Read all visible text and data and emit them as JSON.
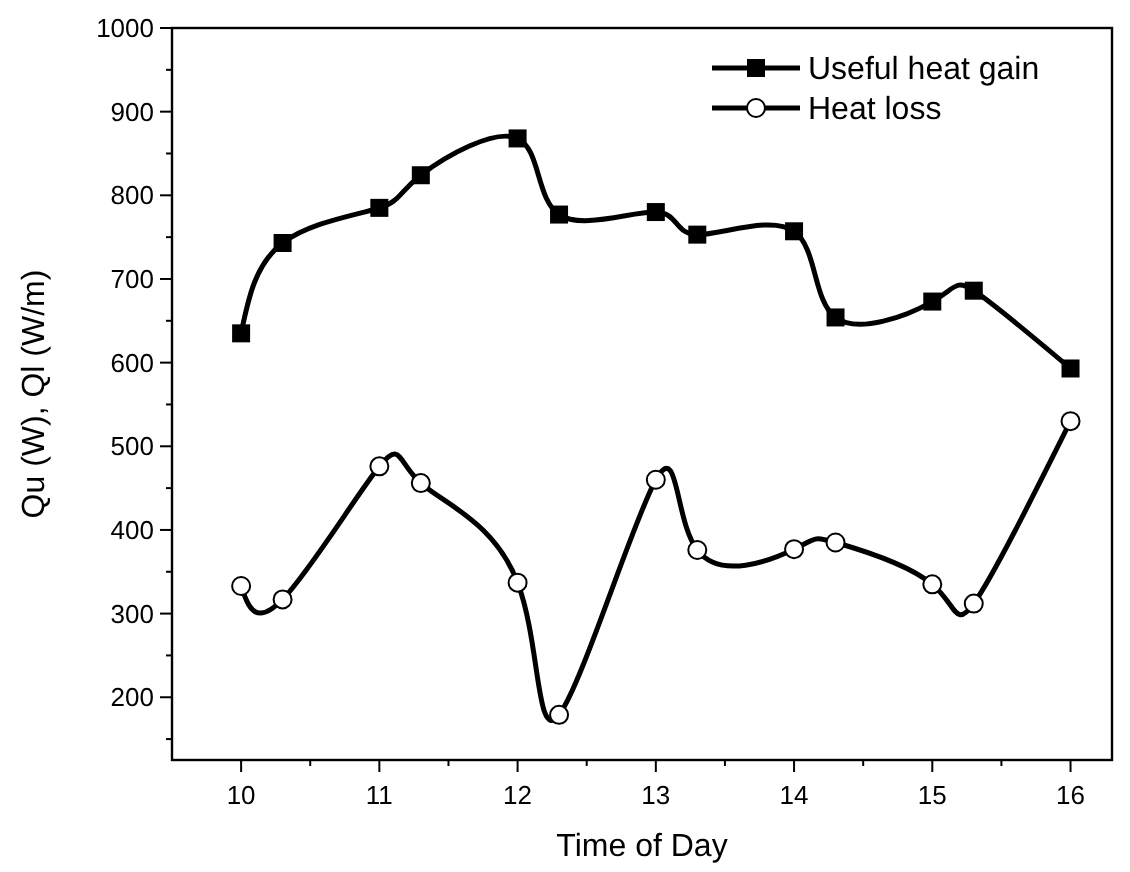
{
  "chart_data": {
    "type": "line",
    "xlabel": "Time of Day",
    "ylabel": "Qu (W), Ql (W/m)",
    "x": [
      10,
      10.3,
      11,
      11.3,
      12,
      12.3,
      13,
      13.3,
      14,
      14.3,
      15,
      15.3,
      16
    ],
    "series": [
      {
        "name": "Useful heat gain",
        "color": "#000000",
        "marker": "square",
        "values": [
          635,
          743,
          785,
          824,
          868,
          777,
          780,
          753,
          757,
          654,
          673,
          686,
          593
        ]
      },
      {
        "name": "Heat loss",
        "color": "#000000",
        "marker": "circle",
        "values": [
          333,
          317,
          476,
          456,
          337,
          179,
          460,
          376,
          377,
          385,
          335,
          312,
          530
        ]
      }
    ],
    "xlim": [
      9.5,
      16.3
    ],
    "ylim": [
      125,
      1000
    ],
    "xticks": [
      10,
      {
        "value": 10.5,
        "label": null
      },
      11,
      {
        "value": 11.5,
        "label": null
      },
      12,
      {
        "value": 12.5,
        "label": null
      },
      13,
      {
        "value": 13.5,
        "label": null
      },
      14,
      {
        "value": 14.5,
        "label": null
      },
      15,
      {
        "value": 15.5,
        "label": null
      },
      16
    ],
    "yticks": [
      {
        "value": 150,
        "label": null
      },
      200,
      {
        "value": 250,
        "label": null
      },
      300,
      {
        "value": 350,
        "label": null
      },
      400,
      {
        "value": 450,
        "label": null
      },
      500,
      {
        "value": 550,
        "label": null
      },
      600,
      {
        "value": 650,
        "label": null
      },
      700,
      {
        "value": 750,
        "label": null
      },
      800,
      {
        "value": 850,
        "label": null
      },
      900,
      {
        "value": 950,
        "label": null
      },
      1000
    ],
    "grid": false,
    "legend": "top right",
    "line_style": "solid"
  }
}
